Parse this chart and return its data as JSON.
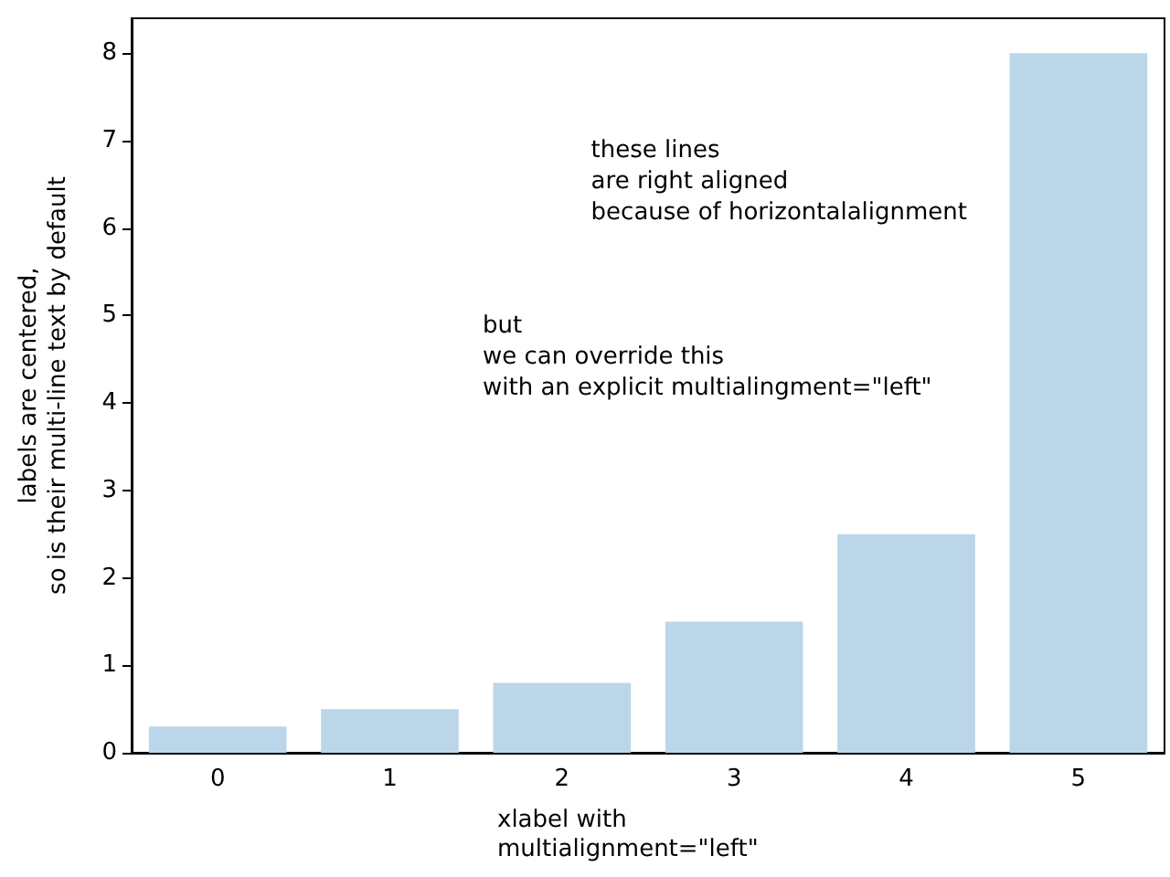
{
  "chart_data": {
    "type": "bar",
    "categories": [
      "0",
      "1",
      "2",
      "3",
      "4",
      "5"
    ],
    "values": [
      0.3,
      0.5,
      0.8,
      1.5,
      2.5,
      8
    ],
    "color": "#bbd6e8",
    "xlabel": "xlabel with\nmultialignment=\"left\"",
    "ylabel": "labels are centered,\nso is their multi-line text by default",
    "ylim": [
      0,
      8.4
    ],
    "yticks": [
      0,
      1,
      2,
      3,
      4,
      5,
      6,
      7,
      8
    ],
    "grid": false,
    "annotations": [
      "these lines\nare right aligned\nbecause of horizontalalignment",
      "but\nwe can override this\nwith an explicit multialingment=\"left\""
    ]
  }
}
